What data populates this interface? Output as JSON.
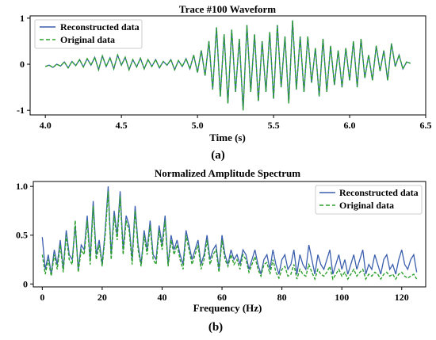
{
  "colors": {
    "reconstructed": "#3b5fad",
    "original": "#2ca02c",
    "background": "#ffffff",
    "axes": "#000000"
  },
  "chart_data": [
    {
      "type": "line",
      "panel": "(a)",
      "title": "Trace #100 Waveform",
      "xlabel": "Time (s)",
      "ylabel": "",
      "xlim": [
        3.9,
        6.5
      ],
      "ylim": [
        -1.1,
        1.05
      ],
      "xticks": [
        "4.0",
        "4.5",
        "5.0",
        "5.5",
        "6.0",
        "6.5"
      ],
      "yticks": [
        "1",
        "0",
        "-1"
      ],
      "legend": "upper-left",
      "series": [
        {
          "name": "Reconstructed data",
          "style": "solid",
          "color": "#3b5fad",
          "x": [
            4.0,
            4.025,
            4.05,
            4.075,
            4.1,
            4.125,
            4.15,
            4.175,
            4.2,
            4.225,
            4.25,
            4.275,
            4.3,
            4.325,
            4.35,
            4.375,
            4.4,
            4.425,
            4.45,
            4.475,
            4.5,
            4.525,
            4.55,
            4.575,
            4.6,
            4.625,
            4.65,
            4.675,
            4.7,
            4.725,
            4.75,
            4.775,
            4.8,
            4.825,
            4.85,
            4.875,
            4.9,
            4.925,
            4.95,
            4.975,
            5.0,
            5.025,
            5.05,
            5.075,
            5.1,
            5.125,
            5.15,
            5.175,
            5.2,
            5.225,
            5.25,
            5.275,
            5.3,
            5.325,
            5.35,
            5.375,
            5.4,
            5.425,
            5.45,
            5.475,
            5.5,
            5.525,
            5.55,
            5.575,
            5.6,
            5.625,
            5.65,
            5.675,
            5.7,
            5.725,
            5.75,
            5.775,
            5.8,
            5.825,
            5.85,
            5.875,
            5.9,
            5.925,
            5.95,
            5.975,
            6.0,
            6.025,
            6.05,
            6.075,
            6.1,
            6.125,
            6.15,
            6.175,
            6.2,
            6.225,
            6.25,
            6.275,
            6.3,
            6.325,
            6.35,
            6.375,
            6.4
          ],
          "y": [
            -0.05,
            -0.02,
            -0.07,
            0.0,
            -0.04,
            0.05,
            -0.08,
            0.06,
            -0.03,
            0.1,
            -0.06,
            0.12,
            -0.02,
            0.15,
            -0.12,
            0.18,
            -0.05,
            0.14,
            -0.1,
            0.2,
            -0.02,
            0.15,
            -0.12,
            0.1,
            -0.06,
            0.13,
            -0.1,
            0.1,
            -0.05,
            0.1,
            -0.08,
            0.06,
            -0.02,
            0.1,
            -0.12,
            0.08,
            -0.05,
            0.12,
            -0.1,
            0.2,
            -0.18,
            0.3,
            -0.25,
            0.5,
            -0.55,
            0.8,
            -0.7,
            0.65,
            -0.85,
            0.75,
            -0.6,
            0.55,
            -1.0,
            0.85,
            -0.6,
            0.65,
            -0.8,
            0.5,
            -0.6,
            0.7,
            -0.75,
            0.85,
            -0.5,
            0.6,
            -0.85,
            0.95,
            -0.55,
            0.6,
            -0.6,
            0.6,
            -0.4,
            0.35,
            -0.7,
            0.55,
            -0.6,
            0.4,
            -0.45,
            0.3,
            -0.5,
            0.35,
            -0.35,
            0.5,
            -0.5,
            0.55,
            -0.3,
            0.2,
            -0.35,
            0.4,
            -0.15,
            0.3,
            -0.35,
            0.45,
            -0.05,
            0.2,
            -0.1,
            0.05,
            0.02
          ]
        },
        {
          "name": "Original data",
          "style": "dashed",
          "color": "#2ca02c",
          "x": [
            4.0,
            4.025,
            4.05,
            4.075,
            4.1,
            4.125,
            4.15,
            4.175,
            4.2,
            4.225,
            4.25,
            4.275,
            4.3,
            4.325,
            4.35,
            4.375,
            4.4,
            4.425,
            4.45,
            4.475,
            4.5,
            4.525,
            4.55,
            4.575,
            4.6,
            4.625,
            4.65,
            4.675,
            4.7,
            4.725,
            4.75,
            4.775,
            4.8,
            4.825,
            4.85,
            4.875,
            4.9,
            4.925,
            4.95,
            4.975,
            5.0,
            5.025,
            5.05,
            5.075,
            5.1,
            5.125,
            5.15,
            5.175,
            5.2,
            5.225,
            5.25,
            5.275,
            5.3,
            5.325,
            5.35,
            5.375,
            5.4,
            5.425,
            5.45,
            5.475,
            5.5,
            5.525,
            5.55,
            5.575,
            5.6,
            5.625,
            5.65,
            5.675,
            5.7,
            5.725,
            5.75,
            5.775,
            5.8,
            5.825,
            5.85,
            5.875,
            5.9,
            5.925,
            5.95,
            5.975,
            6.0,
            6.025,
            6.05,
            6.075,
            6.1,
            6.125,
            6.15,
            6.175,
            6.2,
            6.225,
            6.25,
            6.275,
            6.3,
            6.325,
            6.35,
            6.375,
            6.4
          ],
          "y": [
            -0.05,
            -0.02,
            -0.07,
            0.0,
            -0.04,
            0.05,
            -0.08,
            0.06,
            -0.03,
            0.1,
            -0.06,
            0.12,
            -0.02,
            0.15,
            -0.12,
            0.18,
            -0.05,
            0.14,
            -0.1,
            0.2,
            -0.02,
            0.15,
            -0.12,
            0.1,
            -0.06,
            0.13,
            -0.1,
            0.1,
            -0.05,
            0.1,
            -0.08,
            0.06,
            -0.02,
            0.1,
            -0.12,
            0.08,
            -0.05,
            0.12,
            -0.1,
            0.2,
            -0.18,
            0.3,
            -0.25,
            0.5,
            -0.55,
            0.8,
            -0.7,
            0.65,
            -0.85,
            0.75,
            -0.6,
            0.55,
            -1.0,
            0.85,
            -0.6,
            0.65,
            -0.8,
            0.5,
            -0.6,
            0.7,
            -0.75,
            0.85,
            -0.5,
            0.6,
            -0.85,
            0.95,
            -0.55,
            0.6,
            -0.6,
            0.6,
            -0.4,
            0.35,
            -0.7,
            0.55,
            -0.6,
            0.4,
            -0.45,
            0.3,
            -0.5,
            0.35,
            -0.35,
            0.5,
            -0.5,
            0.55,
            -0.3,
            0.2,
            -0.35,
            0.4,
            -0.15,
            0.3,
            -0.35,
            0.45,
            -0.05,
            0.2,
            -0.1,
            0.05,
            0.02
          ]
        }
      ]
    },
    {
      "type": "line",
      "panel": "(b)",
      "title": "Normalized Amplitude Spectrum",
      "xlabel": "Frequency (Hz)",
      "ylabel": "",
      "xlim": [
        -3,
        128
      ],
      "ylim": [
        -0.03,
        1.05
      ],
      "xticks": [
        "0",
        "20",
        "40",
        "60",
        "80",
        "100",
        "120"
      ],
      "yticks": [
        "1.0",
        "0.5",
        "0"
      ],
      "legend": "upper-right",
      "series": [
        {
          "name": "Reconstructed data",
          "style": "solid",
          "color": "#3b5fad",
          "x": [
            0,
            1,
            2,
            3,
            4,
            5,
            6,
            7,
            8,
            9,
            10,
            11,
            12,
            13,
            14,
            15,
            16,
            17,
            18,
            19,
            20,
            21,
            22,
            23,
            24,
            25,
            26,
            27,
            28,
            29,
            30,
            31,
            32,
            33,
            34,
            35,
            36,
            37,
            38,
            39,
            40,
            41,
            42,
            43,
            44,
            45,
            46,
            47,
            48,
            49,
            50,
            51,
            52,
            53,
            54,
            55,
            56,
            57,
            58,
            59,
            60,
            61,
            62,
            63,
            64,
            65,
            66,
            67,
            68,
            69,
            70,
            71,
            72,
            73,
            74,
            75,
            76,
            77,
            78,
            79,
            80,
            81,
            82,
            83,
            84,
            85,
            86,
            87,
            88,
            89,
            90,
            91,
            92,
            93,
            94,
            95,
            96,
            97,
            98,
            99,
            100,
            101,
            102,
            103,
            104,
            105,
            106,
            107,
            108,
            109,
            110,
            111,
            112,
            113,
            114,
            115,
            116,
            117,
            118,
            119,
            120,
            121,
            122,
            123,
            124,
            125
          ],
          "y": [
            0.48,
            0.15,
            0.3,
            0.1,
            0.35,
            0.2,
            0.45,
            0.15,
            0.55,
            0.3,
            0.25,
            0.6,
            0.15,
            0.4,
            0.35,
            0.7,
            0.25,
            0.85,
            0.3,
            0.45,
            0.2,
            0.55,
            1.0,
            0.3,
            0.75,
            0.5,
            0.95,
            0.35,
            0.7,
            0.6,
            0.25,
            0.8,
            0.4,
            0.2,
            0.55,
            0.35,
            0.65,
            0.3,
            0.25,
            0.6,
            0.4,
            0.7,
            0.2,
            0.5,
            0.35,
            0.45,
            0.3,
            0.2,
            0.55,
            0.4,
            0.25,
            0.35,
            0.45,
            0.2,
            0.3,
            0.5,
            0.25,
            0.35,
            0.4,
            0.15,
            0.5,
            0.3,
            0.2,
            0.35,
            0.25,
            0.3,
            0.2,
            0.35,
            0.3,
            0.15,
            0.25,
            0.35,
            0.2,
            0.1,
            0.25,
            0.3,
            0.15,
            0.35,
            0.2,
            0.1,
            0.25,
            0.3,
            0.15,
            0.2,
            0.35,
            0.1,
            0.3,
            0.2,
            0.15,
            0.4,
            0.25,
            0.1,
            0.3,
            0.2,
            0.15,
            0.25,
            0.35,
            0.1,
            0.2,
            0.3,
            0.15,
            0.25,
            0.1,
            0.2,
            0.3,
            0.15,
            0.25,
            0.35,
            0.1,
            0.2,
            0.15,
            0.3,
            0.2,
            0.1,
            0.25,
            0.3,
            0.15,
            0.2,
            0.1,
            0.25,
            0.35,
            0.2,
            0.15,
            0.25,
            0.3,
            0.12
          ],
          "points_note": ""
        },
        {
          "name": "Original data",
          "style": "dashed",
          "color": "#2ca02c",
          "x": [
            0,
            1,
            2,
            3,
            4,
            5,
            6,
            7,
            8,
            9,
            10,
            11,
            12,
            13,
            14,
            15,
            16,
            17,
            18,
            19,
            20,
            21,
            22,
            23,
            24,
            25,
            26,
            27,
            28,
            29,
            30,
            31,
            32,
            33,
            34,
            35,
            36,
            37,
            38,
            39,
            40,
            41,
            42,
            43,
            44,
            45,
            46,
            47,
            48,
            49,
            50,
            51,
            52,
            53,
            54,
            55,
            56,
            57,
            58,
            59,
            60,
            61,
            62,
            63,
            64,
            65,
            66,
            67,
            68,
            69,
            70,
            71,
            72,
            73,
            74,
            75,
            76,
            77,
            78,
            79,
            80,
            81,
            82,
            83,
            84,
            85,
            86,
            87,
            88,
            89,
            90,
            91,
            92,
            93,
            94,
            95,
            96,
            97,
            98,
            99,
            100,
            101,
            102,
            103,
            104,
            105,
            106,
            107,
            108,
            109,
            110,
            111,
            112,
            113,
            114,
            115,
            116,
            117,
            118,
            119,
            120,
            121,
            122,
            123,
            124,
            125
          ],
          "y": [
            0.3,
            0.1,
            0.25,
            0.08,
            0.3,
            0.15,
            0.4,
            0.12,
            0.5,
            0.25,
            0.2,
            0.65,
            0.12,
            0.35,
            0.3,
            0.65,
            0.2,
            0.8,
            0.25,
            0.4,
            0.18,
            0.5,
            0.95,
            0.25,
            0.7,
            0.45,
            0.9,
            0.3,
            0.65,
            0.55,
            0.2,
            0.75,
            0.35,
            0.18,
            0.5,
            0.3,
            0.6,
            0.25,
            0.2,
            0.55,
            0.35,
            0.65,
            0.18,
            0.45,
            0.3,
            0.4,
            0.25,
            0.15,
            0.5,
            0.35,
            0.2,
            0.3,
            0.4,
            0.15,
            0.25,
            0.45,
            0.2,
            0.3,
            0.35,
            0.12,
            0.45,
            0.25,
            0.18,
            0.3,
            0.2,
            0.25,
            0.15,
            0.3,
            0.25,
            0.12,
            0.2,
            0.28,
            0.15,
            0.08,
            0.2,
            0.22,
            0.1,
            0.25,
            0.12,
            0.06,
            0.15,
            0.18,
            0.08,
            0.1,
            0.2,
            0.05,
            0.15,
            0.1,
            0.08,
            0.2,
            0.12,
            0.05,
            0.15,
            0.1,
            0.08,
            0.12,
            0.18,
            0.05,
            0.1,
            0.15,
            0.08,
            0.12,
            0.05,
            0.1,
            0.15,
            0.08,
            0.12,
            0.15,
            0.05,
            0.1,
            0.08,
            0.12,
            0.1,
            0.05,
            0.1,
            0.12,
            0.08,
            0.1,
            0.05,
            0.1,
            0.12,
            0.08,
            0.06,
            0.08,
            0.1,
            0.05
          ]
        }
      ]
    }
  ]
}
